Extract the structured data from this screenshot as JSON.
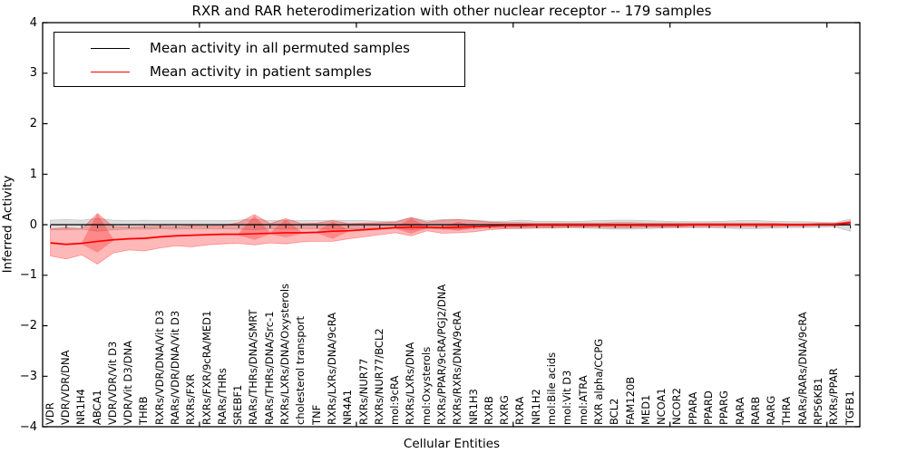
{
  "legend": {
    "items": [
      {
        "label": "Mean activity in all permuted samples",
        "color": "#000000"
      },
      {
        "label": "Mean activity in patient samples",
        "color": "#ff0000"
      }
    ],
    "position": "upper left"
  },
  "chart_data": {
    "type": "line",
    "title": "RXR and RAR heterodimerization with other nuclear receptor -- 179 samples",
    "xlabel": "Cellular Entities",
    "ylabel": "Inferred Activity",
    "ylim": [
      -4,
      4
    ],
    "yticks": [
      4,
      3,
      2,
      1,
      0,
      -1,
      -2,
      -3,
      -4
    ],
    "ytick_labels": [
      "4",
      "3",
      "2",
      "1",
      "0",
      "−1",
      "−2",
      "−3",
      "−4"
    ],
    "xtick_positions": [
      10,
      20,
      30,
      40,
      50
    ],
    "grid": false,
    "legend_position": "upper left",
    "categories": [
      "VDR",
      "VDR/VDR/DNA",
      "NR1H4",
      "ABCA1",
      "VDR/VDR/Vit D3",
      "VDR/Vit D3/DNA",
      "THRB",
      "RXRs/VDR/DNA/Vit D3",
      "RARs/VDR/DNA/Vit D3",
      "RXRs/FXR",
      "RXRs/FXR/9cRA/MED1",
      "RARs/THRs",
      "SREBF1",
      "RARs/THRs/DNA/SMRT",
      "RARs/THRs/DNA/Src-1",
      "RXRs/LXRs/DNA/Oxysterols",
      "cholesterol transport",
      "TNF",
      "RXRs/LXRs/DNA/9cRA",
      "NR4A1",
      "RXRs/NUR77",
      "RXRs/NUR77/BCL2",
      "mol:9cRA",
      "RXRs/LXRs/DNA",
      "mol:Oxysterols",
      "RXRs/PPAR/9cRA/PGJ2/DNA",
      "RXRs/RXRs/DNA/9cRA",
      "NR1H3",
      "RXRB",
      "RXRG",
      "RXRA",
      "NR1H2",
      "mol:Bile acids",
      "mol:Vit D3",
      "mol:ATRA",
      "RXR alpha/CCPG",
      "BCL2",
      "FAM120B",
      "MED1",
      "NCOA1",
      "NCOR2",
      "PPARA",
      "PPARD",
      "PPARG",
      "RARA",
      "RARB",
      "RARG",
      "THRA",
      "RARs/RARs/DNA/9cRA",
      "RPS6KB1",
      "RXRs/PPAR",
      "TGFB1"
    ],
    "series": [
      {
        "name": "Mean activity in all permuted samples",
        "color": "#000000",
        "band_fill": "rgba(0,0,0,0.13)",
        "values": [
          0,
          0,
          0,
          0,
          0,
          0,
          0,
          0,
          0,
          0,
          0,
          0,
          0,
          0,
          0,
          0,
          0,
          0,
          0,
          0,
          0,
          0,
          0,
          0,
          0,
          0,
          0,
          0,
          0,
          0,
          0,
          0,
          0,
          0,
          0,
          0,
          0,
          0,
          0,
          0,
          0,
          0,
          0,
          0,
          0,
          0,
          0,
          0,
          0,
          0,
          0,
          0
        ],
        "band_upper": [
          0.09,
          0.1,
          0.09,
          0.12,
          0.09,
          0.08,
          0.09,
          0.08,
          0.08,
          0.08,
          0.08,
          0.08,
          0.09,
          0.11,
          0.08,
          0.09,
          0.08,
          0.08,
          0.09,
          0.08,
          0.08,
          0.07,
          0.07,
          0.14,
          0.08,
          0.1,
          0.1,
          0.09,
          0.07,
          0.07,
          0.09,
          0.07,
          0.07,
          0.06,
          0.07,
          0.08,
          0.09,
          0.09,
          0.08,
          0.07,
          0.06,
          0.06,
          0.06,
          0.07,
          0.08,
          0.08,
          0.07,
          0.06,
          0.06,
          0.05,
          0.04,
          0.11
        ],
        "band_lower": [
          -0.1,
          -0.1,
          -0.09,
          -0.13,
          -0.1,
          -0.09,
          -0.09,
          -0.08,
          -0.09,
          -0.08,
          -0.08,
          -0.08,
          -0.09,
          -0.1,
          -0.08,
          -0.09,
          -0.08,
          -0.08,
          -0.09,
          -0.08,
          -0.08,
          -0.07,
          -0.07,
          -0.1,
          -0.08,
          -0.09,
          -0.09,
          -0.08,
          -0.07,
          -0.07,
          -0.08,
          -0.07,
          -0.07,
          -0.06,
          -0.07,
          -0.08,
          -0.09,
          -0.09,
          -0.08,
          -0.07,
          -0.06,
          -0.06,
          -0.06,
          -0.07,
          -0.08,
          -0.08,
          -0.07,
          -0.06,
          -0.06,
          -0.05,
          -0.04,
          -0.13
        ]
      },
      {
        "name": "Mean activity in patient samples",
        "color": "#ff0000",
        "band_fill": "rgba(255,0,0,0.28)",
        "values": [
          -0.36,
          -0.39,
          -0.37,
          -0.33,
          -0.3,
          -0.28,
          -0.27,
          -0.24,
          -0.22,
          -0.21,
          -0.2,
          -0.19,
          -0.19,
          -0.18,
          -0.17,
          -0.16,
          -0.16,
          -0.15,
          -0.13,
          -0.12,
          -0.1,
          -0.08,
          -0.06,
          -0.05,
          -0.05,
          -0.06,
          -0.05,
          -0.04,
          -0.03,
          -0.02,
          -0.02,
          -0.01,
          -0.01,
          -0.01,
          -0.01,
          -0.01,
          -0.01,
          -0.01,
          -0.01,
          -0.01,
          -0.01,
          0,
          0,
          0,
          0,
          0,
          0,
          0,
          0,
          0.01,
          0.01,
          0.04
        ],
        "band_upper": [
          -0.08,
          -0.06,
          -0.08,
          0.22,
          -0.04,
          -0.05,
          -0.04,
          -0.03,
          -0.04,
          -0.02,
          -0.03,
          -0.02,
          0.04,
          0.2,
          0.02,
          0.12,
          0.02,
          0.03,
          0.08,
          0.02,
          0.03,
          0.04,
          0.05,
          0.14,
          0.05,
          0.09,
          0.1,
          0.08,
          0.05,
          0.04,
          0.04,
          0.03,
          0.03,
          0.03,
          0.03,
          0.03,
          0.04,
          0.04,
          0.03,
          0.03,
          0.03,
          0.03,
          0.03,
          0.03,
          0.03,
          0.03,
          0.03,
          0.02,
          0.02,
          0.02,
          0.02,
          0.07
        ],
        "band_lower": [
          -0.62,
          -0.68,
          -0.6,
          -0.78,
          -0.56,
          -0.5,
          -0.52,
          -0.46,
          -0.42,
          -0.44,
          -0.4,
          -0.38,
          -0.37,
          -0.4,
          -0.36,
          -0.38,
          -0.34,
          -0.33,
          -0.33,
          -0.28,
          -0.24,
          -0.2,
          -0.16,
          -0.22,
          -0.12,
          -0.17,
          -0.16,
          -0.14,
          -0.1,
          -0.08,
          -0.07,
          -0.06,
          -0.06,
          -0.05,
          -0.05,
          -0.05,
          -0.06,
          -0.06,
          -0.05,
          -0.05,
          -0.05,
          -0.04,
          -0.04,
          -0.04,
          -0.04,
          -0.04,
          -0.04,
          -0.03,
          -0.03,
          -0.02,
          -0.02,
          -0.01
        ],
        "inner_band_upper": [
          -0.34,
          -0.37,
          -0.35,
          0.22,
          -0.28,
          -0.26,
          -0.25,
          -0.22,
          -0.2,
          -0.19,
          -0.18,
          -0.17,
          -0.17,
          0.18,
          -0.15,
          0.1,
          -0.14,
          -0.13,
          0.06,
          -0.1,
          -0.08,
          -0.06,
          -0.04,
          0.12,
          -0.03,
          -0.04,
          0.06,
          -0.02,
          -0.01,
          0.0,
          0.0,
          0.01,
          0.01,
          0.01,
          0.01,
          0.01,
          0.01,
          0.01,
          0.01,
          0.01,
          0.01,
          0.02,
          0.02,
          0.02,
          0.02,
          0.02,
          0.02,
          0.02,
          0.02,
          0.03,
          0.03,
          0.06
        ],
        "inner_band_lower": [
          -0.38,
          -0.41,
          -0.39,
          -0.55,
          -0.32,
          -0.3,
          -0.29,
          -0.26,
          -0.24,
          -0.23,
          -0.22,
          -0.21,
          -0.21,
          -0.3,
          -0.19,
          -0.25,
          -0.18,
          -0.17,
          -0.28,
          -0.14,
          -0.12,
          -0.1,
          -0.08,
          -0.18,
          -0.07,
          -0.08,
          -0.12,
          -0.06,
          -0.05,
          -0.04,
          -0.04,
          -0.03,
          -0.03,
          -0.03,
          -0.03,
          -0.03,
          -0.03,
          -0.03,
          -0.03,
          -0.03,
          -0.03,
          -0.02,
          -0.02,
          -0.02,
          -0.02,
          -0.02,
          -0.02,
          -0.02,
          -0.02,
          -0.01,
          -0.01,
          0.0
        ]
      }
    ]
  }
}
